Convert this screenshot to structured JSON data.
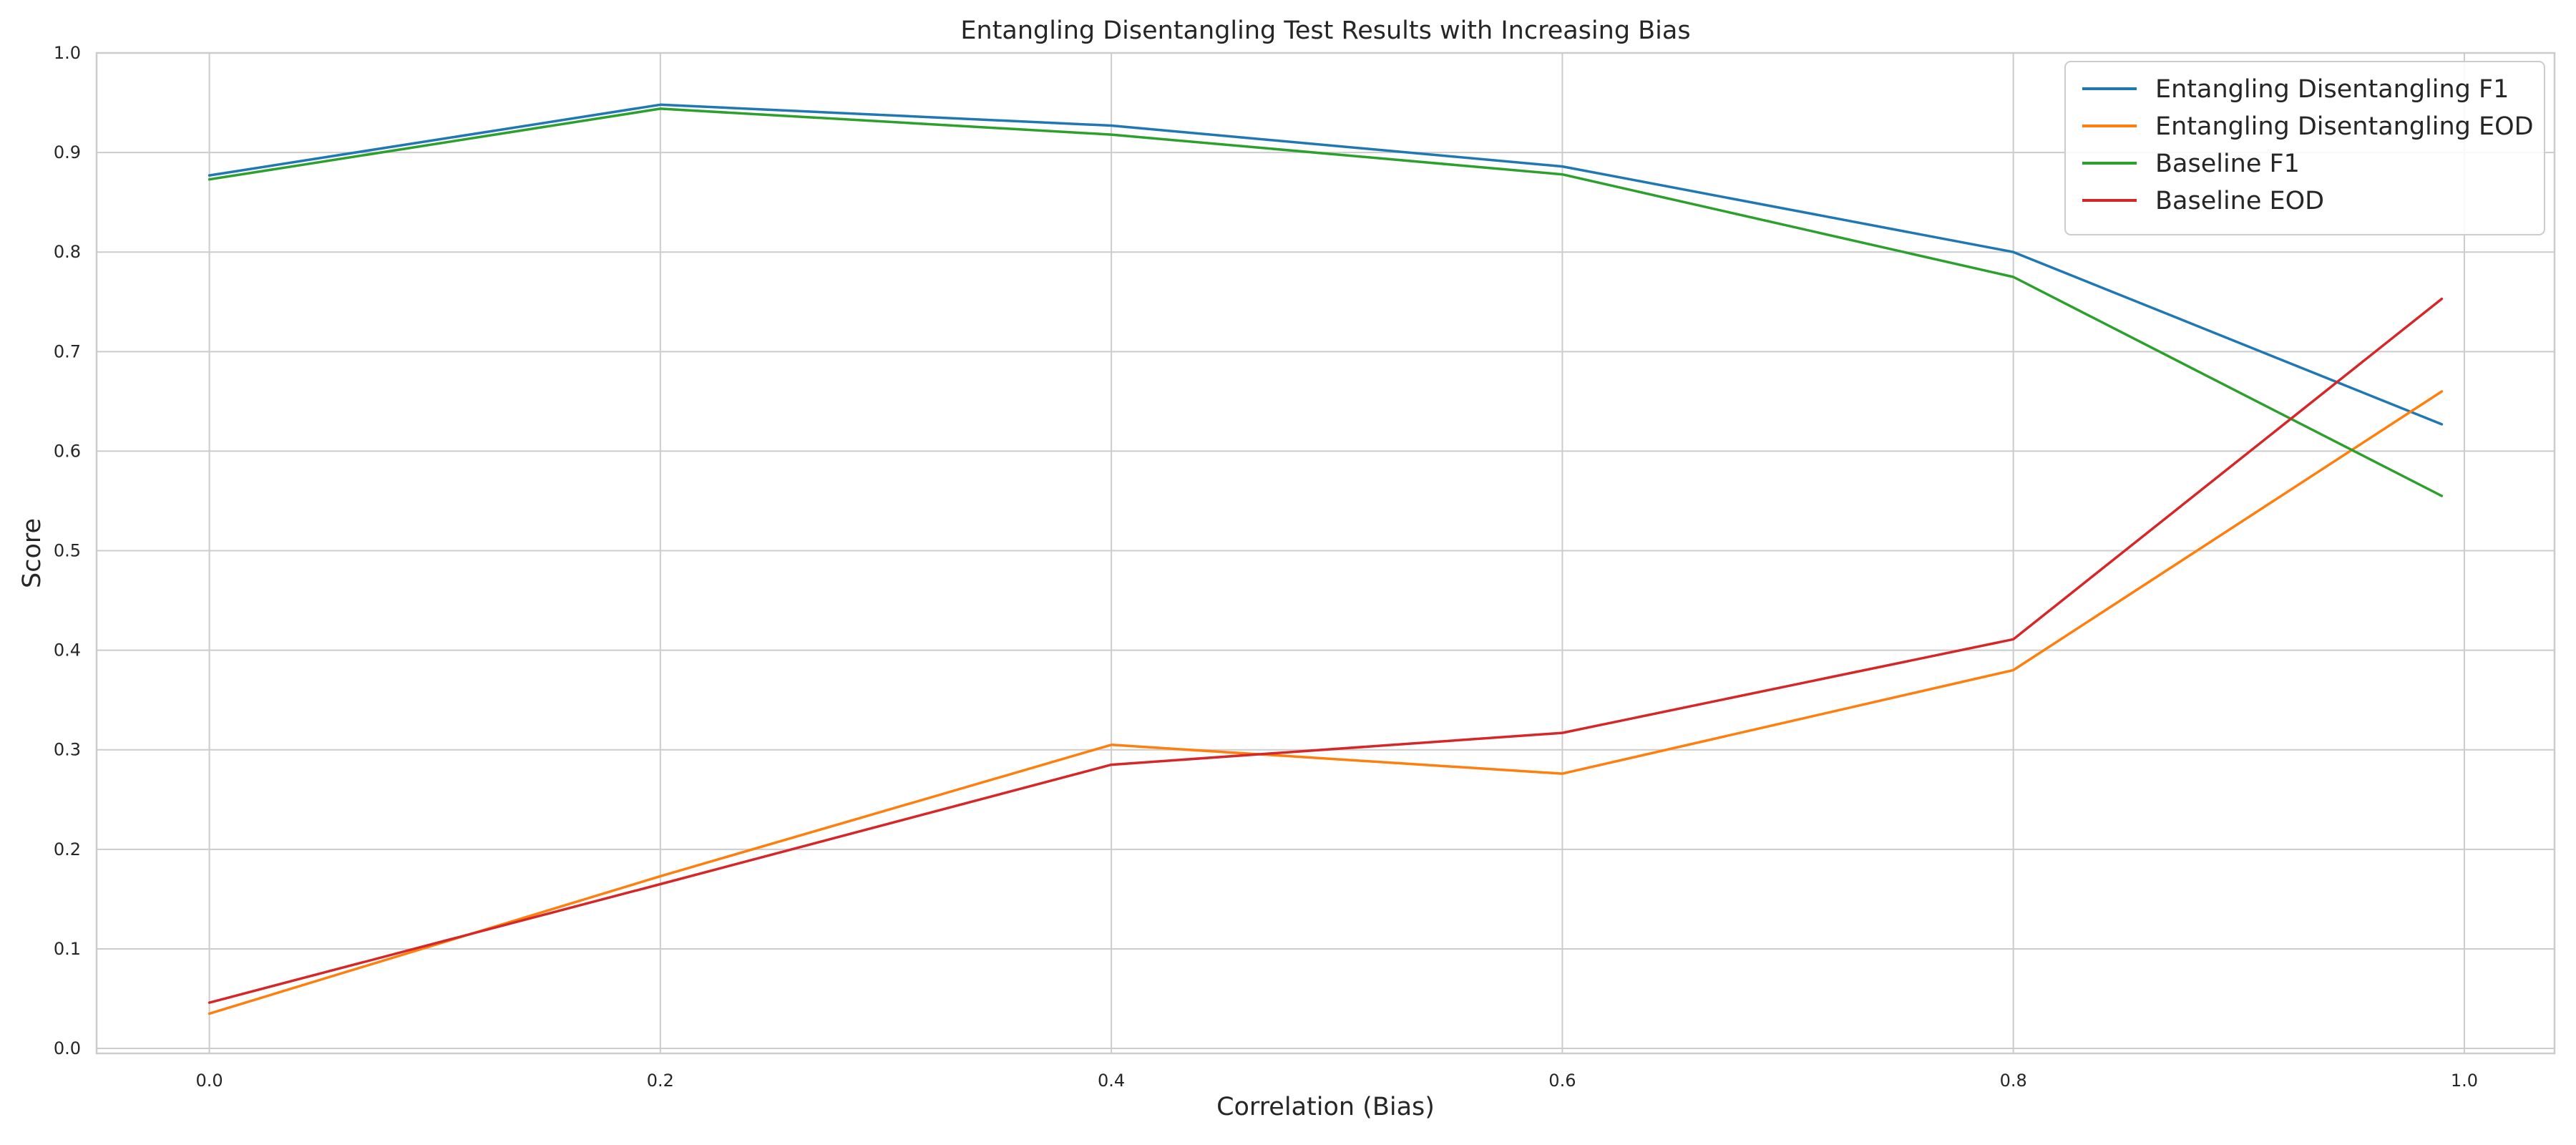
{
  "chart_data": {
    "type": "line",
    "title": "Entangling Disentangling Test Results with Increasing Bias",
    "xlabel": "Correlation (Bias)",
    "ylabel": "Score",
    "xlim": [
      -0.05,
      1.04
    ],
    "ylim": [
      -0.005,
      1.0
    ],
    "xticks": [
      0.0,
      0.2,
      0.4,
      0.6,
      0.8,
      1.0
    ],
    "xtick_labels": [
      "0.0",
      "0.2",
      "0.4",
      "0.6",
      "0.8",
      "1.0"
    ],
    "yticks": [
      0.0,
      0.1,
      0.2,
      0.3,
      0.4,
      0.5,
      0.6,
      0.7,
      0.8,
      0.9,
      1.0
    ],
    "ytick_labels": [
      "0.0",
      "0.1",
      "0.2",
      "0.3",
      "0.4",
      "0.5",
      "0.6",
      "0.7",
      "0.8",
      "0.9",
      "1.0"
    ],
    "grid": true,
    "legend_position": "top-right",
    "x": [
      0.0,
      0.2,
      0.4,
      0.6,
      0.8,
      0.99
    ],
    "series": [
      {
        "name": "Entangling Disentangling F1",
        "color": "#1f77b4",
        "values": [
          0.877,
          0.948,
          0.927,
          0.886,
          0.8,
          0.627
        ]
      },
      {
        "name": "Entangling Disentangling EOD",
        "color": "#ff7f0e",
        "values": [
          0.035,
          0.173,
          0.305,
          0.276,
          0.38,
          0.66
        ]
      },
      {
        "name": "Baseline F1",
        "color": "#2ca02c",
        "values": [
          0.873,
          0.944,
          0.918,
          0.878,
          0.775,
          0.555
        ]
      },
      {
        "name": "Baseline EOD",
        "color": "#d62728",
        "values": [
          0.046,
          0.165,
          0.285,
          0.317,
          0.411,
          0.753
        ]
      }
    ]
  }
}
